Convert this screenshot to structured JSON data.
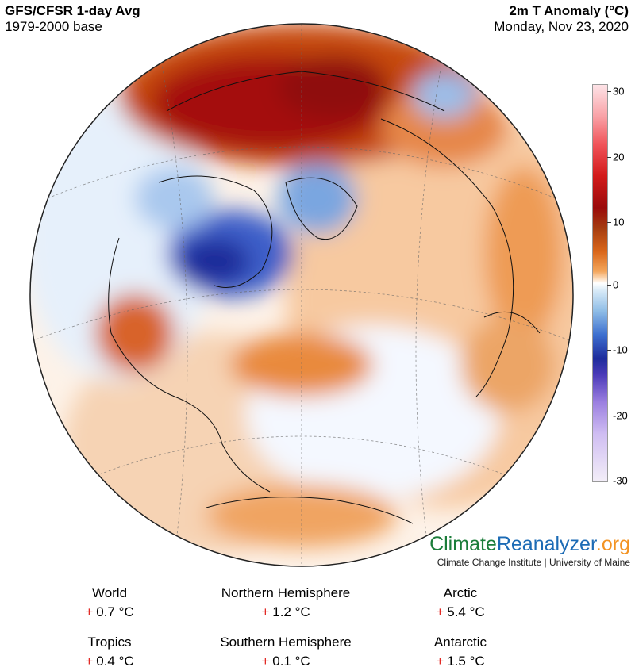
{
  "header": {
    "left_title": "GFS/CFSR 1-day Avg",
    "left_subtitle": "1979-2000 base",
    "right_title": "2m T Anomaly (°C)",
    "right_subtitle": "Monday, Nov 23, 2020"
  },
  "colorbar": {
    "ticks": [
      "30",
      "20",
      "10",
      "0",
      "-10",
      "-20",
      "-30"
    ],
    "colors": {
      "warm_max": "#9a0b0b",
      "neutral": "#ffffff",
      "cold_max": "#1e2c9c",
      "extreme_cold": "#cfbdf2"
    }
  },
  "brand": {
    "part1": "Climate",
    "part2": "Reanalyzer",
    "part3": ".org",
    "subtitle": "Climate Change Institute | University of Maine"
  },
  "stats": [
    {
      "name": "World",
      "sign": "+",
      "value": "0.7 °C"
    },
    {
      "name": "Northern Hemisphere",
      "sign": "+",
      "value": "1.2 °C"
    },
    {
      "name": "Arctic",
      "sign": "+",
      "value": "5.4 °C"
    },
    {
      "name": "Tropics",
      "sign": "+",
      "value": "0.4 °C"
    },
    {
      "name": "Southern Hemisphere",
      "sign": "+",
      "value": "0.1 °C"
    },
    {
      "name": "Antarctic",
      "sign": "+",
      "value": "1.5 °C"
    }
  ]
}
